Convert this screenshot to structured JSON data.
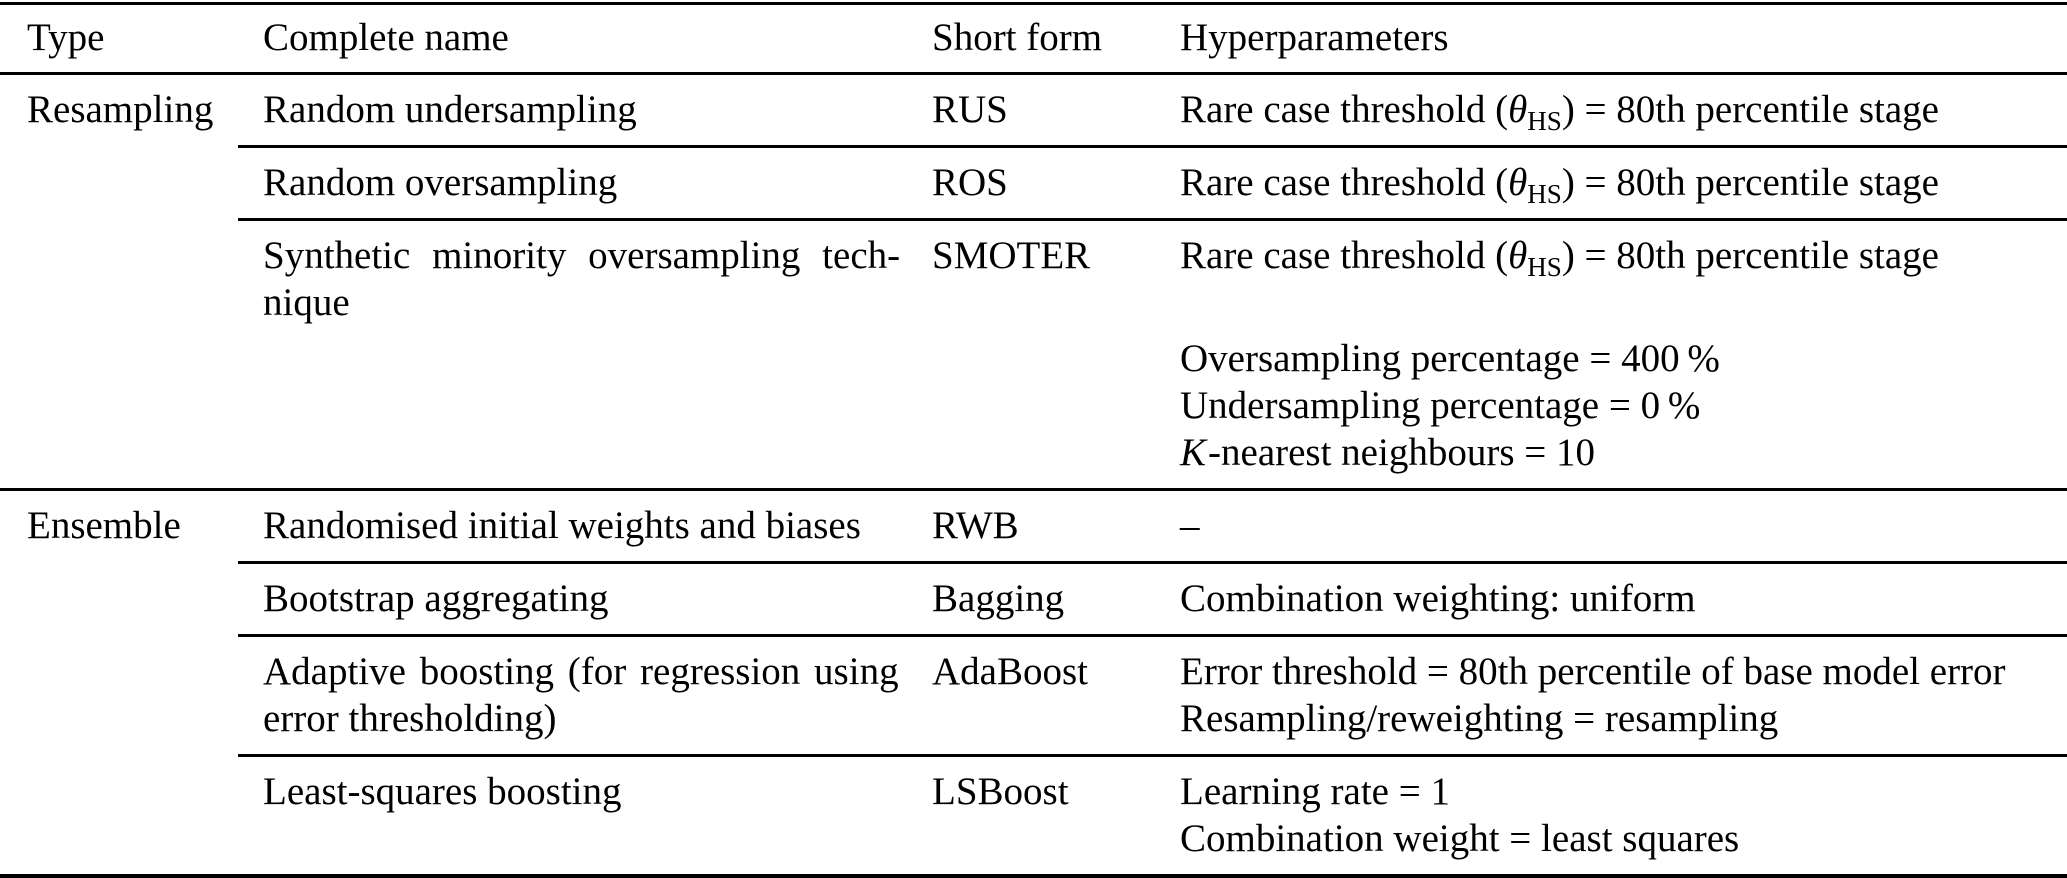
{
  "table": {
    "headers": [
      "Type",
      "Complete name",
      "Short form",
      "Hyperparameters"
    ],
    "groups": [
      {
        "type": "Resampling",
        "rows": [
          {
            "name_lines": [
              "Random undersampling"
            ],
            "short_form": "RUS",
            "rare_case": {
              "pre": "Rare case threshold (",
              "theta": "θ",
              "sub": "HS",
              "post": ") = 80th percentile stage"
            }
          },
          {
            "name_lines": [
              "Random oversampling"
            ],
            "short_form": "ROS",
            "rare_case": {
              "pre": "Rare case threshold (",
              "theta": "θ",
              "sub": "HS",
              "post": ") = 80th percentile stage"
            }
          },
          {
            "name_lines": [
              "Synthetic minority oversampling tech-",
              "nique"
            ],
            "short_form": "SMOTER",
            "rare_case": {
              "pre": "Rare case threshold (",
              "theta": "θ",
              "sub": "HS",
              "post": ") = 80th percentile stage"
            },
            "extra_lines": [
              "Oversampling percentage = 400 %",
              "Undersampling percentage = 0 %"
            ],
            "knn": {
              "k": "K",
              "rest": "-nearest neighbours = 10"
            }
          }
        ]
      },
      {
        "type": "Ensemble",
        "rows": [
          {
            "name_lines": [
              "Randomised initial weights and biases"
            ],
            "short_form": "RWB",
            "hyper_lines": [
              "–"
            ]
          },
          {
            "name_lines": [
              "Bootstrap aggregating"
            ],
            "short_form": "Bagging",
            "hyper_lines": [
              "Combination weighting: uniform"
            ]
          },
          {
            "name_lines": [
              "Adaptive boosting (for regression using",
              "error thresholding)"
            ],
            "short_form": "AdaBoost",
            "hyper_lines": [
              "Error threshold = 80th percentile of base model error",
              "Resampling/reweighting = resampling"
            ]
          },
          {
            "name_lines": [
              "Least-squares boosting"
            ],
            "short_form": "LSBoost",
            "hyper_lines": [
              "Learning rate = 1",
              "Combination weight = least squares"
            ]
          }
        ]
      }
    ]
  }
}
